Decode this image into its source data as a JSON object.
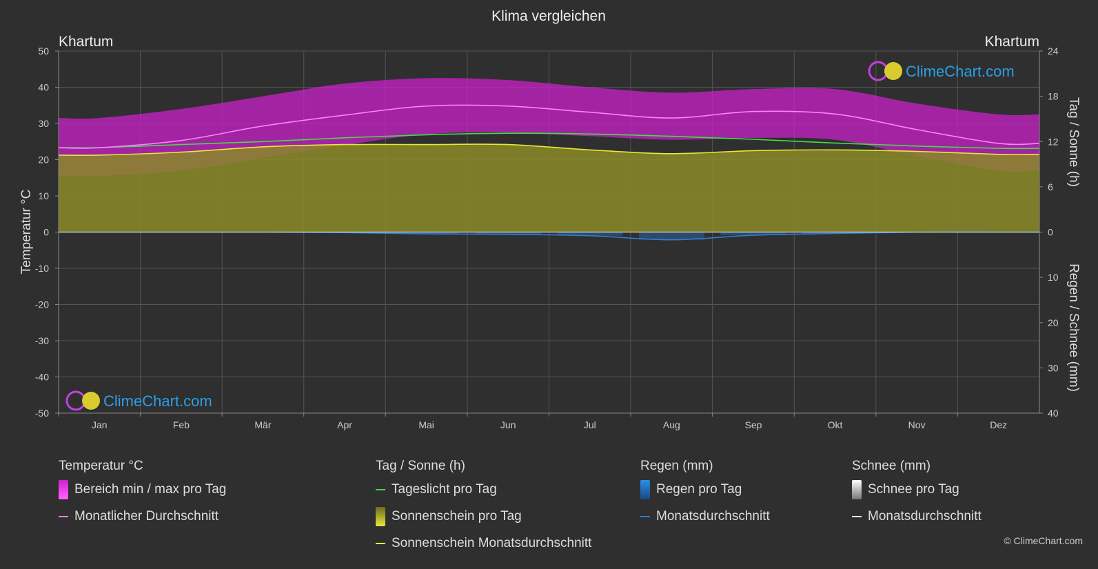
{
  "title": "Klima vergleichen",
  "location_left": "Khartum",
  "location_right": "Khartum",
  "watermark": "ClimeChart.com",
  "copyright": "© ClimeChart.com",
  "colors": {
    "background": "#2f2f2f",
    "temp_range": "#d020d0",
    "temp_avg": "#ff80ff",
    "daylight": "#44dd44",
    "sunshine_fill": "#8a8a28",
    "sunshine_avg": "#e8e83a",
    "rain": "#2a7fd4",
    "snow": "#ffffff"
  },
  "legend": {
    "temp": {
      "title": "Temperatur °C",
      "range_label": "Bereich min / max pro Tag",
      "avg_label": "Monatlicher Durchschnitt"
    },
    "sun": {
      "title": "Tag / Sonne (h)",
      "daylight_label": "Tageslicht pro Tag",
      "sunshine_label": "Sonnenschein pro Tag",
      "sunshine_avg_label": "Sonnenschein Monatsdurchschnitt"
    },
    "rain": {
      "title": "Regen (mm)",
      "rain_label": "Regen pro Tag",
      "avg_label": "Monatsdurchschnitt"
    },
    "snow": {
      "title": "Schnee (mm)",
      "snow_label": "Schnee pro Tag",
      "avg_label": "Monatsdurchschnitt"
    }
  },
  "chart_data": {
    "type": "area",
    "categories": [
      "Jan",
      "Feb",
      "Mär",
      "Apr",
      "Mai",
      "Jun",
      "Jul",
      "Aug",
      "Sep",
      "Okt",
      "Nov",
      "Dez"
    ],
    "y_left": {
      "label": "Temperatur °C",
      "range": [
        -50,
        50
      ],
      "ticks": [
        50,
        40,
        30,
        20,
        10,
        0,
        -10,
        -20,
        -30,
        -40,
        -50
      ]
    },
    "y_right_top": {
      "label": "Tag / Sonne (h)",
      "range": [
        0,
        24
      ],
      "ticks": [
        24,
        18,
        12,
        6,
        0
      ]
    },
    "y_right_bottom": {
      "label": "Regen / Schnee (mm)",
      "range": [
        0,
        40
      ],
      "ticks": [
        0,
        10,
        20,
        30,
        40
      ]
    },
    "grid": true,
    "series": [
      {
        "name": "Bereich min / max pro Tag",
        "min": [
          15.5,
          17,
          20.5,
          24,
          27,
          27.5,
          26.5,
          25.5,
          26,
          25.5,
          21,
          17
        ],
        "max": [
          31.5,
          34,
          37.5,
          41,
          42.5,
          42,
          40,
          38.5,
          39.5,
          39.5,
          35.5,
          32.5
        ]
      },
      {
        "name": "Monatlicher Durchschnitt",
        "values": [
          23.3,
          25.3,
          29.3,
          32.3,
          34.8,
          34.8,
          33.1,
          31.5,
          33.3,
          32.6,
          28.3,
          24.5
        ]
      },
      {
        "name": "Tageslicht pro Tag",
        "values": [
          11.2,
          11.6,
          12.0,
          12.5,
          12.9,
          13.1,
          13.0,
          12.7,
          12.3,
          11.8,
          11.4,
          11.1
        ]
      },
      {
        "name": "Sonnenschein pro Tag",
        "values": [
          10.2,
          10.6,
          11.3,
          11.6,
          11.6,
          11.6,
          10.9,
          10.4,
          10.8,
          10.9,
          10.7,
          10.3
        ]
      },
      {
        "name": "Sonnenschein Monatsdurchschnitt",
        "values": [
          10.2,
          10.6,
          11.3,
          11.6,
          11.6,
          11.6,
          10.9,
          10.4,
          10.8,
          10.9,
          10.7,
          10.3
        ]
      },
      {
        "name": "Regen pro Tag",
        "values": [
          0,
          0,
          0,
          0.1,
          0.4,
          0.5,
          0.8,
          1.7,
          0.7,
          0.3,
          0,
          0
        ]
      },
      {
        "name": "Monatsdurchschnitt",
        "values": [
          0,
          0,
          0,
          0.1,
          0.4,
          0.5,
          0.8,
          1.7,
          0.7,
          0.3,
          0,
          0
        ]
      }
    ]
  }
}
